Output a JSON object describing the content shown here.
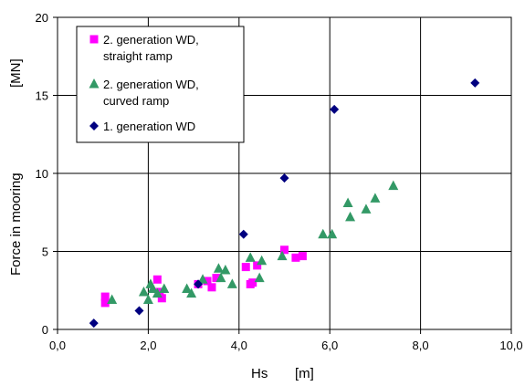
{
  "chart_data": {
    "type": "scatter",
    "title": "",
    "xlabel": "Hs",
    "xunit": "[m]",
    "ylabel": "Force in mooring",
    "yunit": "[MN]",
    "xlim": [
      0,
      10
    ],
    "ylim": [
      0,
      20
    ],
    "x_ticks": [
      "0,0",
      "2,0",
      "4,0",
      "6,0",
      "8,0",
      "10,0"
    ],
    "y_ticks": [
      "0",
      "5",
      "10",
      "15",
      "20"
    ],
    "grid": true,
    "legend_position": "top-left",
    "series": [
      {
        "name_lines": [
          "2. generation WD,",
          "straight ramp"
        ],
        "marker": "square",
        "color": "#ff00ff",
        "points": [
          [
            1.05,
            1.7
          ],
          [
            1.05,
            2.1
          ],
          [
            2.2,
            3.2
          ],
          [
            2.25,
            2.4
          ],
          [
            2.3,
            2.0
          ],
          [
            3.1,
            2.9
          ],
          [
            3.3,
            3.1
          ],
          [
            3.4,
            2.7
          ],
          [
            3.5,
            3.3
          ],
          [
            4.15,
            4.0
          ],
          [
            4.25,
            2.9
          ],
          [
            4.3,
            3.0
          ],
          [
            4.4,
            4.1
          ],
          [
            5.0,
            5.1
          ],
          [
            5.25,
            4.6
          ],
          [
            5.4,
            4.7
          ]
        ]
      },
      {
        "name_lines": [
          "2. generation WD,",
          "curved ramp"
        ],
        "marker": "triangle",
        "color": "#339966",
        "points": [
          [
            1.2,
            1.9
          ],
          [
            1.9,
            2.4
          ],
          [
            2.0,
            1.9
          ],
          [
            2.05,
            2.9
          ],
          [
            2.1,
            2.6
          ],
          [
            2.2,
            2.3
          ],
          [
            2.35,
            2.6
          ],
          [
            2.85,
            2.6
          ],
          [
            2.95,
            2.3
          ],
          [
            3.2,
            3.2
          ],
          [
            3.55,
            3.9
          ],
          [
            3.6,
            3.3
          ],
          [
            3.7,
            3.8
          ],
          [
            3.85,
            2.9
          ],
          [
            4.25,
            4.6
          ],
          [
            4.45,
            3.3
          ],
          [
            4.5,
            4.4
          ],
          [
            4.95,
            4.7
          ],
          [
            5.85,
            6.1
          ],
          [
            6.05,
            6.1
          ],
          [
            6.4,
            8.1
          ],
          [
            6.45,
            7.2
          ],
          [
            6.8,
            7.7
          ],
          [
            7.0,
            8.4
          ],
          [
            7.4,
            9.2
          ]
        ]
      },
      {
        "name_lines": [
          "1. generation WD"
        ],
        "marker": "diamond",
        "color": "#000080",
        "points": [
          [
            0.8,
            0.4
          ],
          [
            1.8,
            1.2
          ],
          [
            3.1,
            2.9
          ],
          [
            4.1,
            6.1
          ],
          [
            5.0,
            9.7
          ],
          [
            6.1,
            14.1
          ],
          [
            9.2,
            15.8
          ]
        ]
      }
    ]
  }
}
